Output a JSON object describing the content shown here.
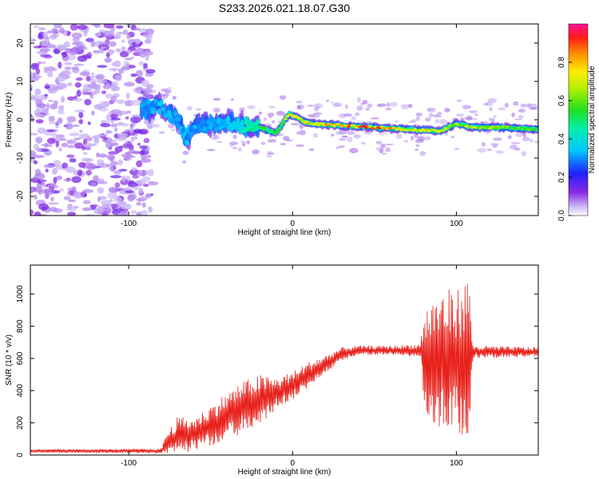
{
  "title": "S233.2026.021.18.07.G30",
  "chart_data": [
    {
      "type": "heatmap",
      "panel": "top",
      "title": "S233.2026.021.18.07.G30",
      "xlabel": "Height of straight line (km)",
      "ylabel": "Frequency (Hz)",
      "xlim": [
        -160,
        150
      ],
      "ylim": [
        -25,
        25
      ],
      "xticks": [
        -100,
        0,
        100
      ],
      "yticks": [
        -20,
        -10,
        0,
        10,
        20
      ],
      "grid": false,
      "colorbar": {
        "label": "Normalized spectral amplitude",
        "range": [
          0,
          1
        ],
        "ticks": [
          0.0,
          0.2,
          0.4,
          0.6,
          0.8
        ],
        "colormap": "rainbow"
      },
      "signal_track": [
        {
          "x": -90,
          "freq": 3.0,
          "amp": 0.3
        },
        {
          "x": -80,
          "freq": 3.5,
          "amp": 0.35
        },
        {
          "x": -70,
          "freq": 0.0,
          "amp": 0.3
        },
        {
          "x": -65,
          "freq": -5.0,
          "amp": 0.35
        },
        {
          "x": -60,
          "freq": -2.0,
          "amp": 0.3
        },
        {
          "x": -50,
          "freq": -1.0,
          "amp": 0.3
        },
        {
          "x": -40,
          "freq": -0.5,
          "amp": 0.35
        },
        {
          "x": -30,
          "freq": -1.5,
          "amp": 0.4
        },
        {
          "x": -20,
          "freq": -2.0,
          "amp": 0.5
        },
        {
          "x": -10,
          "freq": -3.5,
          "amp": 0.55
        },
        {
          "x": -2,
          "freq": 1.5,
          "amp": 0.7
        },
        {
          "x": 10,
          "freq": -1.0,
          "amp": 0.75
        },
        {
          "x": 30,
          "freq": -1.5,
          "amp": 0.8
        },
        {
          "x": 50,
          "freq": -2.0,
          "amp": 0.85
        },
        {
          "x": 70,
          "freq": -2.5,
          "amp": 0.7
        },
        {
          "x": 90,
          "freq": -3.0,
          "amp": 0.75
        },
        {
          "x": 100,
          "freq": -1.0,
          "amp": 0.6
        },
        {
          "x": 110,
          "freq": -2.0,
          "amp": 0.7
        },
        {
          "x": 130,
          "freq": -2.0,
          "amp": 0.6
        },
        {
          "x": 150,
          "freq": -2.5,
          "amp": 0.55
        }
      ],
      "noise_region": {
        "x_from": -160,
        "x_to": -90,
        "amp": 0.2
      }
    },
    {
      "type": "line",
      "panel": "bottom",
      "xlabel": "Height of straight line (km)",
      "ylabel": "SNR (10 * v/v)",
      "xlim": [
        -160,
        150
      ],
      "ylim": [
        0,
        1180
      ],
      "xticks": [
        -100,
        0,
        100
      ],
      "yticks": [
        0,
        200,
        400,
        600,
        800,
        1000
      ],
      "grid": false,
      "series": [
        {
          "name": "SNR",
          "color": "#e8201a",
          "envelope": [
            {
              "x": -160,
              "mean": 25,
              "spread": 10
            },
            {
              "x": -80,
              "mean": 25,
              "spread": 15
            },
            {
              "x": -78,
              "mean": 60,
              "spread": 60
            },
            {
              "x": -70,
              "mean": 120,
              "spread": 120
            },
            {
              "x": -60,
              "mean": 130,
              "spread": 100
            },
            {
              "x": -50,
              "mean": 180,
              "spread": 130
            },
            {
              "x": -40,
              "mean": 240,
              "spread": 150
            },
            {
              "x": -30,
              "mean": 300,
              "spread": 160
            },
            {
              "x": -20,
              "mean": 340,
              "spread": 160
            },
            {
              "x": -10,
              "mean": 380,
              "spread": 100
            },
            {
              "x": 0,
              "mean": 430,
              "spread": 90
            },
            {
              "x": 10,
              "mean": 500,
              "spread": 80
            },
            {
              "x": 20,
              "mean": 560,
              "spread": 60
            },
            {
              "x": 30,
              "mean": 630,
              "spread": 40
            },
            {
              "x": 40,
              "mean": 650,
              "spread": 30
            },
            {
              "x": 60,
              "mean": 650,
              "spread": 30
            },
            {
              "x": 78,
              "mean": 650,
              "spread": 40
            },
            {
              "x": 80,
              "mean": 600,
              "spread": 300
            },
            {
              "x": 90,
              "mean": 580,
              "spread": 450
            },
            {
              "x": 100,
              "mean": 580,
              "spread": 450
            },
            {
              "x": 108,
              "mean": 620,
              "spread": 500
            },
            {
              "x": 110,
              "mean": 640,
              "spread": 40
            },
            {
              "x": 150,
              "mean": 640,
              "spread": 30
            }
          ]
        }
      ]
    }
  ]
}
